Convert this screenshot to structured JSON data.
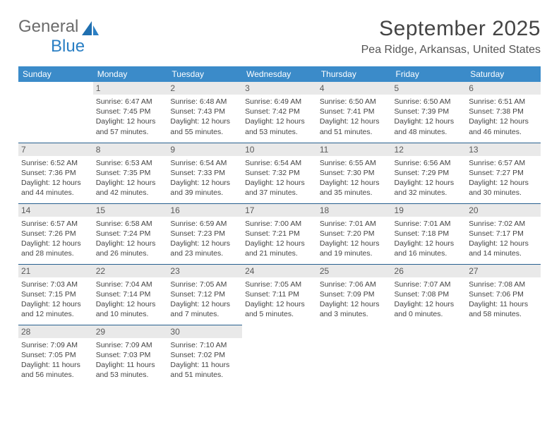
{
  "brand": {
    "part1": "General",
    "part2": "Blue"
  },
  "title": "September 2025",
  "location": "Pea Ridge, Arkansas, United States",
  "day_headers": [
    "Sunday",
    "Monday",
    "Tuesday",
    "Wednesday",
    "Thursday",
    "Friday",
    "Saturday"
  ],
  "colors": {
    "header_bg": "#3b8bc9",
    "header_text": "#ffffff",
    "row_border": "#27608f",
    "daynum_bg": "#e9e9e9",
    "logo_blue": "#2a7fc4"
  },
  "weeks": [
    [
      {
        "empty": true
      },
      {
        "num": "1",
        "sunrise": "Sunrise: 6:47 AM",
        "sunset": "Sunset: 7:45 PM",
        "daylight": "Daylight: 12 hours and 57 minutes."
      },
      {
        "num": "2",
        "sunrise": "Sunrise: 6:48 AM",
        "sunset": "Sunset: 7:43 PM",
        "daylight": "Daylight: 12 hours and 55 minutes."
      },
      {
        "num": "3",
        "sunrise": "Sunrise: 6:49 AM",
        "sunset": "Sunset: 7:42 PM",
        "daylight": "Daylight: 12 hours and 53 minutes."
      },
      {
        "num": "4",
        "sunrise": "Sunrise: 6:50 AM",
        "sunset": "Sunset: 7:41 PM",
        "daylight": "Daylight: 12 hours and 51 minutes."
      },
      {
        "num": "5",
        "sunrise": "Sunrise: 6:50 AM",
        "sunset": "Sunset: 7:39 PM",
        "daylight": "Daylight: 12 hours and 48 minutes."
      },
      {
        "num": "6",
        "sunrise": "Sunrise: 6:51 AM",
        "sunset": "Sunset: 7:38 PM",
        "daylight": "Daylight: 12 hours and 46 minutes."
      }
    ],
    [
      {
        "num": "7",
        "sunrise": "Sunrise: 6:52 AM",
        "sunset": "Sunset: 7:36 PM",
        "daylight": "Daylight: 12 hours and 44 minutes."
      },
      {
        "num": "8",
        "sunrise": "Sunrise: 6:53 AM",
        "sunset": "Sunset: 7:35 PM",
        "daylight": "Daylight: 12 hours and 42 minutes."
      },
      {
        "num": "9",
        "sunrise": "Sunrise: 6:54 AM",
        "sunset": "Sunset: 7:33 PM",
        "daylight": "Daylight: 12 hours and 39 minutes."
      },
      {
        "num": "10",
        "sunrise": "Sunrise: 6:54 AM",
        "sunset": "Sunset: 7:32 PM",
        "daylight": "Daylight: 12 hours and 37 minutes."
      },
      {
        "num": "11",
        "sunrise": "Sunrise: 6:55 AM",
        "sunset": "Sunset: 7:30 PM",
        "daylight": "Daylight: 12 hours and 35 minutes."
      },
      {
        "num": "12",
        "sunrise": "Sunrise: 6:56 AM",
        "sunset": "Sunset: 7:29 PM",
        "daylight": "Daylight: 12 hours and 32 minutes."
      },
      {
        "num": "13",
        "sunrise": "Sunrise: 6:57 AM",
        "sunset": "Sunset: 7:27 PM",
        "daylight": "Daylight: 12 hours and 30 minutes."
      }
    ],
    [
      {
        "num": "14",
        "sunrise": "Sunrise: 6:57 AM",
        "sunset": "Sunset: 7:26 PM",
        "daylight": "Daylight: 12 hours and 28 minutes."
      },
      {
        "num": "15",
        "sunrise": "Sunrise: 6:58 AM",
        "sunset": "Sunset: 7:24 PM",
        "daylight": "Daylight: 12 hours and 26 minutes."
      },
      {
        "num": "16",
        "sunrise": "Sunrise: 6:59 AM",
        "sunset": "Sunset: 7:23 PM",
        "daylight": "Daylight: 12 hours and 23 minutes."
      },
      {
        "num": "17",
        "sunrise": "Sunrise: 7:00 AM",
        "sunset": "Sunset: 7:21 PM",
        "daylight": "Daylight: 12 hours and 21 minutes."
      },
      {
        "num": "18",
        "sunrise": "Sunrise: 7:01 AM",
        "sunset": "Sunset: 7:20 PM",
        "daylight": "Daylight: 12 hours and 19 minutes."
      },
      {
        "num": "19",
        "sunrise": "Sunrise: 7:01 AM",
        "sunset": "Sunset: 7:18 PM",
        "daylight": "Daylight: 12 hours and 16 minutes."
      },
      {
        "num": "20",
        "sunrise": "Sunrise: 7:02 AM",
        "sunset": "Sunset: 7:17 PM",
        "daylight": "Daylight: 12 hours and 14 minutes."
      }
    ],
    [
      {
        "num": "21",
        "sunrise": "Sunrise: 7:03 AM",
        "sunset": "Sunset: 7:15 PM",
        "daylight": "Daylight: 12 hours and 12 minutes."
      },
      {
        "num": "22",
        "sunrise": "Sunrise: 7:04 AM",
        "sunset": "Sunset: 7:14 PM",
        "daylight": "Daylight: 12 hours and 10 minutes."
      },
      {
        "num": "23",
        "sunrise": "Sunrise: 7:05 AM",
        "sunset": "Sunset: 7:12 PM",
        "daylight": "Daylight: 12 hours and 7 minutes."
      },
      {
        "num": "24",
        "sunrise": "Sunrise: 7:05 AM",
        "sunset": "Sunset: 7:11 PM",
        "daylight": "Daylight: 12 hours and 5 minutes."
      },
      {
        "num": "25",
        "sunrise": "Sunrise: 7:06 AM",
        "sunset": "Sunset: 7:09 PM",
        "daylight": "Daylight: 12 hours and 3 minutes."
      },
      {
        "num": "26",
        "sunrise": "Sunrise: 7:07 AM",
        "sunset": "Sunset: 7:08 PM",
        "daylight": "Daylight: 12 hours and 0 minutes."
      },
      {
        "num": "27",
        "sunrise": "Sunrise: 7:08 AM",
        "sunset": "Sunset: 7:06 PM",
        "daylight": "Daylight: 11 hours and 58 minutes."
      }
    ],
    [
      {
        "num": "28",
        "sunrise": "Sunrise: 7:09 AM",
        "sunset": "Sunset: 7:05 PM",
        "daylight": "Daylight: 11 hours and 56 minutes."
      },
      {
        "num": "29",
        "sunrise": "Sunrise: 7:09 AM",
        "sunset": "Sunset: 7:03 PM",
        "daylight": "Daylight: 11 hours and 53 minutes."
      },
      {
        "num": "30",
        "sunrise": "Sunrise: 7:10 AM",
        "sunset": "Sunset: 7:02 PM",
        "daylight": "Daylight: 11 hours and 51 minutes."
      },
      {
        "empty": true
      },
      {
        "empty": true
      },
      {
        "empty": true
      },
      {
        "empty": true
      }
    ]
  ]
}
